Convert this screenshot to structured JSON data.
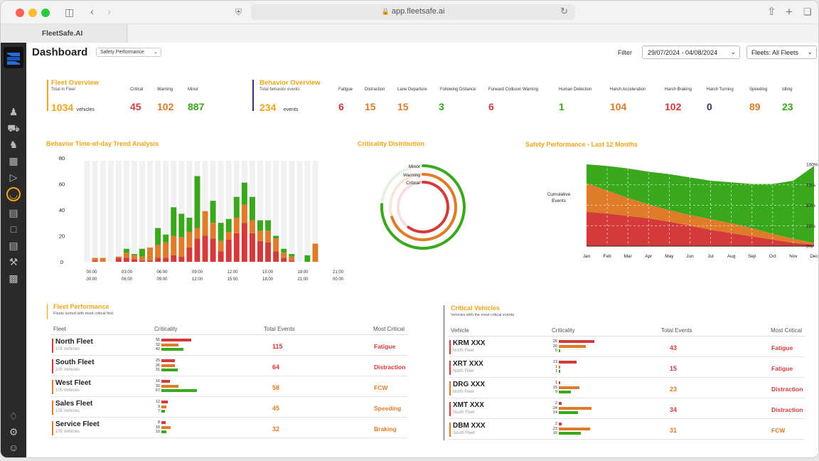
{
  "browser": {
    "url": "app.fleetsafe.ai",
    "tab_title": "FleetSafe.AI"
  },
  "header": {
    "title": "Dashboard",
    "view_select": "Safety Performance",
    "filter_label": "Filter",
    "date_range": "29/07/2024 - 04/08/2024",
    "fleets_select": "Fleets: All Fleets"
  },
  "fleet_overview": {
    "title": "Fleet Overview",
    "subtitle": "Total in Fleet",
    "total": "1034",
    "unit": "vehicles",
    "stats": [
      {
        "label": "Critical",
        "value": "45",
        "color": "#d43a3a"
      },
      {
        "label": "Warning",
        "value": "102",
        "color": "#e07b29"
      },
      {
        "label": "Minor",
        "value": "887",
        "color": "#3aa81c"
      }
    ]
  },
  "behavior_overview": {
    "title": "Behavior Overview",
    "subtitle": "Total behavior events",
    "total": "234",
    "unit": "events",
    "stats": [
      {
        "label": "Fatigue",
        "value": "6",
        "color": "#d43a3a"
      },
      {
        "label": "Distraction",
        "value": "15",
        "color": "#e07b29"
      },
      {
        "label": "Lane Departure",
        "value": "15",
        "color": "#e07b29"
      },
      {
        "label": "Following Distance",
        "value": "3",
        "color": "#3aa81c"
      },
      {
        "label": "Forward Collision Warning",
        "value": "6",
        "color": "#d43a3a"
      },
      {
        "label": "Human Detection",
        "value": "1",
        "color": "#3aa81c"
      },
      {
        "label": "Harsh Acceleration",
        "value": "104",
        "color": "#e07b29"
      },
      {
        "label": "Harsh Braking",
        "value": "102",
        "color": "#d43a3a"
      },
      {
        "label": "Harsh Turning",
        "value": "0",
        "color": "#2d3d66"
      },
      {
        "label": "Speeding",
        "value": "89",
        "color": "#e07b29"
      },
      {
        "label": "Idling",
        "value": "23",
        "color": "#3aa81c"
      }
    ]
  },
  "charts": {
    "trend_title": "Behavior Time-of-day Trend Analysis",
    "dist_title": "Criticality Distribution",
    "safety_title": "Safety Performance - Last 12 Months"
  },
  "chart_data": [
    {
      "type": "bar",
      "title": "Behavior Time-of-day Trend Analysis",
      "stacked": true,
      "ylim": [
        0,
        80
      ],
      "yticks": [
        "80",
        "60",
        "40",
        "20",
        "0"
      ],
      "xticks": [
        [
          "00:00",
          "00:00"
        ],
        [
          "03:00",
          "06:00"
        ],
        [
          "06:00",
          "09:00"
        ],
        [
          "09:00",
          "12:00"
        ],
        [
          "12:00",
          "15:00"
        ],
        [
          "15:00",
          "18:00"
        ],
        [
          "18:00",
          "21:00"
        ],
        [
          "21:00",
          "00:00"
        ]
      ],
      "series": [
        {
          "color": "#d43a3a",
          "values": [
            0,
            1,
            0,
            0,
            3,
            3,
            2,
            1,
            1,
            3,
            3,
            5,
            4,
            11,
            18,
            20,
            18,
            8,
            17,
            22,
            30,
            22,
            16,
            15,
            8,
            3,
            1,
            0,
            0,
            0
          ]
        },
        {
          "color": "#e07b29",
          "values": [
            0,
            2,
            3,
            0,
            1,
            4,
            3,
            3,
            10,
            10,
            12,
            15,
            15,
            12,
            8,
            19,
            12,
            8,
            6,
            12,
            14,
            10,
            8,
            9,
            10,
            4,
            3,
            0,
            0,
            14
          ]
        },
        {
          "color": "#3aa81c",
          "values": [
            0,
            0,
            0,
            0,
            0,
            3,
            1,
            6,
            0,
            13,
            6,
            22,
            18,
            11,
            40,
            0,
            17,
            14,
            10,
            16,
            17,
            18,
            8,
            8,
            2,
            3,
            2,
            0,
            5,
            0
          ]
        }
      ]
    },
    {
      "type": "pie",
      "title": "Criticality Distribution",
      "style": "radial-arcs",
      "series": [
        {
          "name": "Minor",
          "color": "#3aa81c",
          "fraction": 0.76
        },
        {
          "name": "Warning",
          "color": "#e07b29",
          "fraction": 0.7
        },
        {
          "name": "Critical",
          "color": "#d43a3a",
          "fraction": 0.6
        }
      ]
    },
    {
      "type": "area",
      "title": "Safety Performance - Last 12 Months",
      "stacked": true,
      "percent": true,
      "ylabel": "Cumulative Events",
      "yticks": [
        "100%",
        "75%",
        "50%",
        "25%",
        "0%"
      ],
      "categories": [
        "Jan",
        "Feb",
        "Mar",
        "Apr",
        "May",
        "Jun",
        "Jul",
        "Aug",
        "Sep",
        "Oct",
        "Nov",
        "Dec"
      ],
      "series": [
        {
          "color": "#d43a3a",
          "values": [
            42,
            40,
            37,
            34,
            30,
            25,
            20,
            16,
            12,
            8,
            4,
            2
          ]
        },
        {
          "color": "#e07b29",
          "values": [
            35,
            28,
            22,
            17,
            14,
            13,
            13,
            12,
            10,
            7,
            5,
            2
          ]
        },
        {
          "color": "#3aa81c",
          "values": [
            23,
            30,
            36,
            40,
            44,
            46,
            47,
            50,
            54,
            61,
            71,
            94
          ]
        }
      ]
    }
  ],
  "fleet_perf": {
    "title": "Fleet Performance",
    "subtitle": "Fleets sorted with most critical first",
    "headers": [
      "Fleet",
      "Criticality",
      "Total Events",
      "Most Critical"
    ],
    "rows": [
      {
        "name": "North Fleet",
        "sub": "105 Vehicles",
        "accent": "#d43a3a",
        "counts": [
          "56",
          "32",
          "42"
        ],
        "events": "115",
        "critical": "Fatigue",
        "critical_color": "#d43a3a"
      },
      {
        "name": "South Fleet",
        "sub": "105 Vehicles",
        "accent": "#d43a3a",
        "counts": [
          "25",
          "26",
          "31"
        ],
        "events": "64",
        "critical": "Distraction",
        "critical_color": "#d43a3a"
      },
      {
        "name": "West Fleet",
        "sub": "105 Vehicles",
        "accent": "#e07b29",
        "counts": [
          "16",
          "32",
          "67"
        ],
        "events": "58",
        "critical": "FCW",
        "critical_color": "#e07b29"
      },
      {
        "name": "Sales Fleet",
        "sub": "105 Vehicles",
        "accent": "#e07b29",
        "counts": [
          "12",
          "9",
          "7"
        ],
        "events": "45",
        "critical": "Speeding",
        "critical_color": "#e07b29"
      },
      {
        "name": "Service Fleet",
        "sub": "105 Vehicles",
        "accent": "#e07b29",
        "counts": [
          "8",
          "18",
          "10"
        ],
        "events": "32",
        "critical": "Braking",
        "critical_color": "#e07b29"
      }
    ]
  },
  "critical_vehicles": {
    "title": "Critical Vehicles",
    "subtitle": "Vehicles with the most critical events",
    "headers": [
      "Vehicle",
      "Criticality",
      "Total Events",
      "Most Critical"
    ],
    "rows": [
      {
        "name": "KRM XXX",
        "sub": "North Fleet",
        "accent": "#d43a3a",
        "counts": [
          "26",
          "20",
          "0"
        ],
        "events": "43",
        "critical": "Fatigue",
        "critical_color": "#d43a3a"
      },
      {
        "name": "XRT XXX",
        "sub": "North Fleet",
        "accent": "#d43a3a",
        "counts": [
          "13",
          "1",
          "1"
        ],
        "events": "15",
        "critical": "Fatigue",
        "critical_color": "#d43a3a"
      },
      {
        "name": "DRG XXX",
        "sub": "North Fleet",
        "accent": "#e07b29",
        "counts": [
          "1",
          "15",
          "9"
        ],
        "events": "23",
        "critical": "Distraction",
        "critical_color": "#d43a3a"
      },
      {
        "name": "XMT XXX",
        "sub": "South Fleet",
        "accent": "#d43a3a",
        "counts": [
          "2",
          "24",
          "14"
        ],
        "events": "34",
        "critical": "Distraction",
        "critical_color": "#d43a3a"
      },
      {
        "name": "DBM XXX",
        "sub": "South Fleet",
        "accent": "#e07b29",
        "counts": [
          "2",
          "23",
          "16"
        ],
        "events": "31",
        "critical": "FCW",
        "critical_color": "#e07b29"
      }
    ]
  }
}
